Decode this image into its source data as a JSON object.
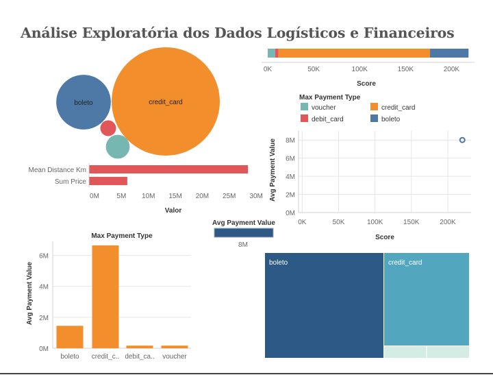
{
  "title": "Análise Exploratória dos Dados Logísticos e Financeiros",
  "colors": {
    "voucher": "#76b7b2",
    "credit_card": "#f28e2b",
    "debit_card": "#e15759",
    "boleto": "#4e79a7",
    "bar_red": "#e15759",
    "gradient_dark": "#2c5985",
    "treemap_boleto": "#2c5985",
    "treemap_credit": "#52a6bd",
    "treemap_small": "#d3ede5"
  },
  "chart_data": [
    {
      "id": "score_stacked_bar",
      "type": "bar",
      "orientation": "horizontal-stacked",
      "xlabel": "Score",
      "xlim": [
        0,
        225000
      ],
      "x_ticks": [
        "0K",
        "50K",
        "100K",
        "150K",
        "200K"
      ],
      "x_tick_values": [
        0,
        50000,
        100000,
        150000,
        200000
      ],
      "series": [
        {
          "key": "voucher",
          "value": 8000
        },
        {
          "key": "debit_card",
          "value": 3500
        },
        {
          "key": "credit_card",
          "value": 165000
        },
        {
          "key": "boleto",
          "value": 42000
        }
      ]
    },
    {
      "id": "legend",
      "title": "Max Payment Type",
      "entries": [
        {
          "key": "voucher",
          "label": "voucher"
        },
        {
          "key": "credit_card",
          "label": "credit_card"
        },
        {
          "key": "debit_card",
          "label": "debit_card"
        },
        {
          "key": "boleto",
          "label": "boleto"
        }
      ]
    },
    {
      "id": "bubbles",
      "type": "scatter",
      "bubbles": [
        {
          "key": "credit_card",
          "label": "credit_card",
          "value": 165000
        },
        {
          "key": "boleto",
          "label": "boleto",
          "value": 42000
        },
        {
          "key": "voucher",
          "label": "",
          "value": 8000
        },
        {
          "key": "debit_card",
          "label": "",
          "value": 3500
        }
      ]
    },
    {
      "id": "valor_bars",
      "type": "bar",
      "orientation": "horizontal",
      "xlabel": "Valor",
      "xlim": [
        0,
        31000000
      ],
      "x_ticks": [
        "0M",
        "5M",
        "10M",
        "15M",
        "20M",
        "25M",
        "30M"
      ],
      "x_tick_values": [
        0,
        5000000,
        10000000,
        15000000,
        20000000,
        25000000,
        30000000
      ],
      "categories": [
        "Mean Distance Km",
        "Sum Price"
      ],
      "values": [
        29500000,
        7100000
      ]
    },
    {
      "id": "score_scatter",
      "type": "scatter",
      "xlabel": "Score",
      "ylabel": "Avg Payment Value",
      "xlim": [
        -5000,
        232000
      ],
      "ylim": [
        0,
        9000000
      ],
      "x_ticks": [
        "0K",
        "50K",
        "100K",
        "150K",
        "200K"
      ],
      "x_tick_values": [
        0,
        50000,
        100000,
        150000,
        200000
      ],
      "y_ticks": [
        "0M",
        "2M",
        "4M",
        "6M",
        "8M"
      ],
      "y_tick_values": [
        0,
        2000000,
        4000000,
        6000000,
        8000000
      ],
      "points": [
        {
          "x": 220000,
          "y": 8000000
        }
      ]
    },
    {
      "id": "gradient_legend",
      "title": "Avg Payment Value",
      "label": "8M"
    },
    {
      "id": "payment_bars",
      "type": "bar",
      "title": "Max Payment Type",
      "ylabel": "Avg Payment Value",
      "ylim": [
        0,
        7000000
      ],
      "y_ticks": [
        "0M",
        "2M",
        "4M",
        "6M"
      ],
      "y_tick_values": [
        0,
        2000000,
        4000000,
        6000000
      ],
      "categories": [
        "boleto",
        "credit_c..",
        "debit_ca..",
        "voucher"
      ],
      "values": [
        1450000,
        6650000,
        170000,
        170000
      ]
    },
    {
      "id": "treemap",
      "type": "heatmap",
      "cells": [
        {
          "label": "boleto",
          "share": 0.54
        },
        {
          "label": "credit_card",
          "share": 0.39
        },
        {
          "label": "",
          "share": 0.035
        },
        {
          "label": "",
          "share": 0.035
        }
      ]
    }
  ]
}
